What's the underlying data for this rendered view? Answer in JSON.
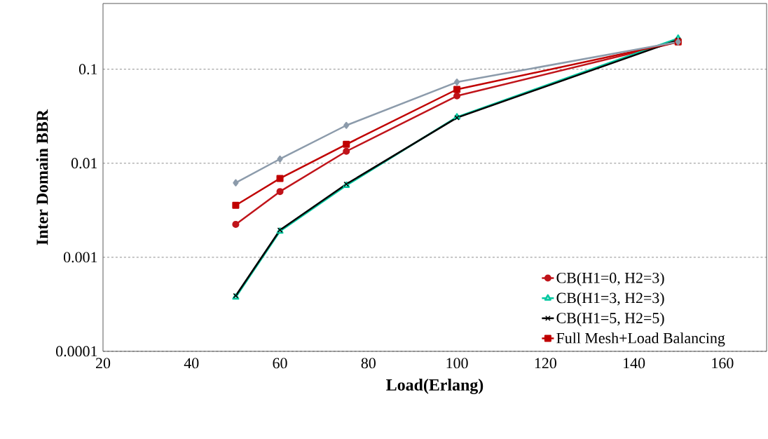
{
  "chart_data": {
    "type": "line",
    "xlabel": "Load(Erlang)",
    "ylabel": "Inter Domain BBR",
    "x": [
      50,
      60,
      75,
      100,
      150
    ],
    "series": [
      {
        "name": "CB(H1=0, H2=3)",
        "color": "#c0141a",
        "marker": "circle",
        "values": [
          0.00224,
          0.005,
          0.0134,
          0.052,
          0.195
        ]
      },
      {
        "name": "CB(H1=3, H2=3)",
        "color": "#00c8a0",
        "marker": "triangle",
        "values": [
          0.000376,
          0.00189,
          0.0058,
          0.031,
          0.213
        ]
      },
      {
        "name": "CB(H1=5, H2=5)",
        "color": "#000000",
        "marker": "cross",
        "values": [
          0.00039,
          0.00195,
          0.006,
          0.0305,
          0.205
        ]
      },
      {
        "name": "Full Mesh+Load Balancing",
        "color": "#c00000",
        "marker": "square",
        "values": [
          0.00357,
          0.0069,
          0.0159,
          0.061,
          0.195
        ]
      },
      {
        "color": "#8c9bab",
        "marker": "diamond",
        "values": [
          0.0062,
          0.0111,
          0.0253,
          0.073,
          0.195
        ]
      }
    ],
    "xlim": [
      20,
      170
    ],
    "xticks": [
      20,
      40,
      60,
      80,
      100,
      120,
      140,
      160
    ],
    "ylim": [
      0.0001,
      0.5
    ],
    "yticks": [
      0.0001,
      0.001,
      0.01,
      0.1
    ],
    "log": "y",
    "grid": "y",
    "legend": "bottom right",
    "line_style": "solid"
  }
}
